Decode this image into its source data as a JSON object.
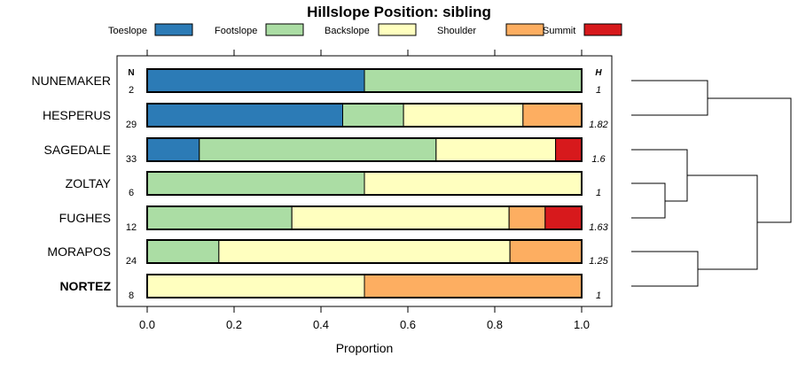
{
  "chart_data": {
    "type": "bar",
    "stacked": true,
    "orientation": "horizontal",
    "title": "Hillslope Position: sibling",
    "xlabel": "Proportion",
    "xlim": [
      0,
      1
    ],
    "xticks": [
      "0.0",
      "0.2",
      "0.4",
      "0.6",
      "0.8",
      "1.0"
    ],
    "legend_position": "top",
    "n_header": "N",
    "h_header": "H",
    "series": [
      {
        "name": "Toeslope",
        "color": "#2c7bb6"
      },
      {
        "name": "Footslope",
        "color": "#abdda4"
      },
      {
        "name": "Backslope",
        "color": "#ffffbf"
      },
      {
        "name": "Shoulder",
        "color": "#fdae61"
      },
      {
        "name": "Summit",
        "color": "#d7191c"
      }
    ],
    "categories": [
      {
        "name": "NUNEMAKER",
        "n": "2",
        "h": "1",
        "bold": false,
        "values": [
          0.5,
          0.5,
          0,
          0,
          0
        ]
      },
      {
        "name": "HESPERUS",
        "n": "29",
        "h": "1.82",
        "bold": false,
        "values": [
          0.45,
          0.14,
          0.275,
          0.135,
          0
        ]
      },
      {
        "name": "SAGEDALE",
        "n": "33",
        "h": "1.6",
        "bold": false,
        "values": [
          0.12,
          0.545,
          0.275,
          0,
          0.06
        ]
      },
      {
        "name": "ZOLTAY",
        "n": "6",
        "h": "1",
        "bold": false,
        "values": [
          0,
          0.5,
          0.5,
          0,
          0
        ]
      },
      {
        "name": "FUGHES",
        "n": "12",
        "h": "1.63",
        "bold": false,
        "values": [
          0,
          0.333,
          0.5,
          0.083,
          0.084
        ]
      },
      {
        "name": "MORAPOS",
        "n": "24",
        "h": "1.25",
        "bold": false,
        "values": [
          0,
          0.165,
          0.67,
          0.165,
          0
        ]
      },
      {
        "name": "NORTEZ",
        "n": "8",
        "h": "1",
        "bold": true,
        "values": [
          0,
          0,
          0.5,
          0.5,
          0
        ]
      }
    ]
  }
}
